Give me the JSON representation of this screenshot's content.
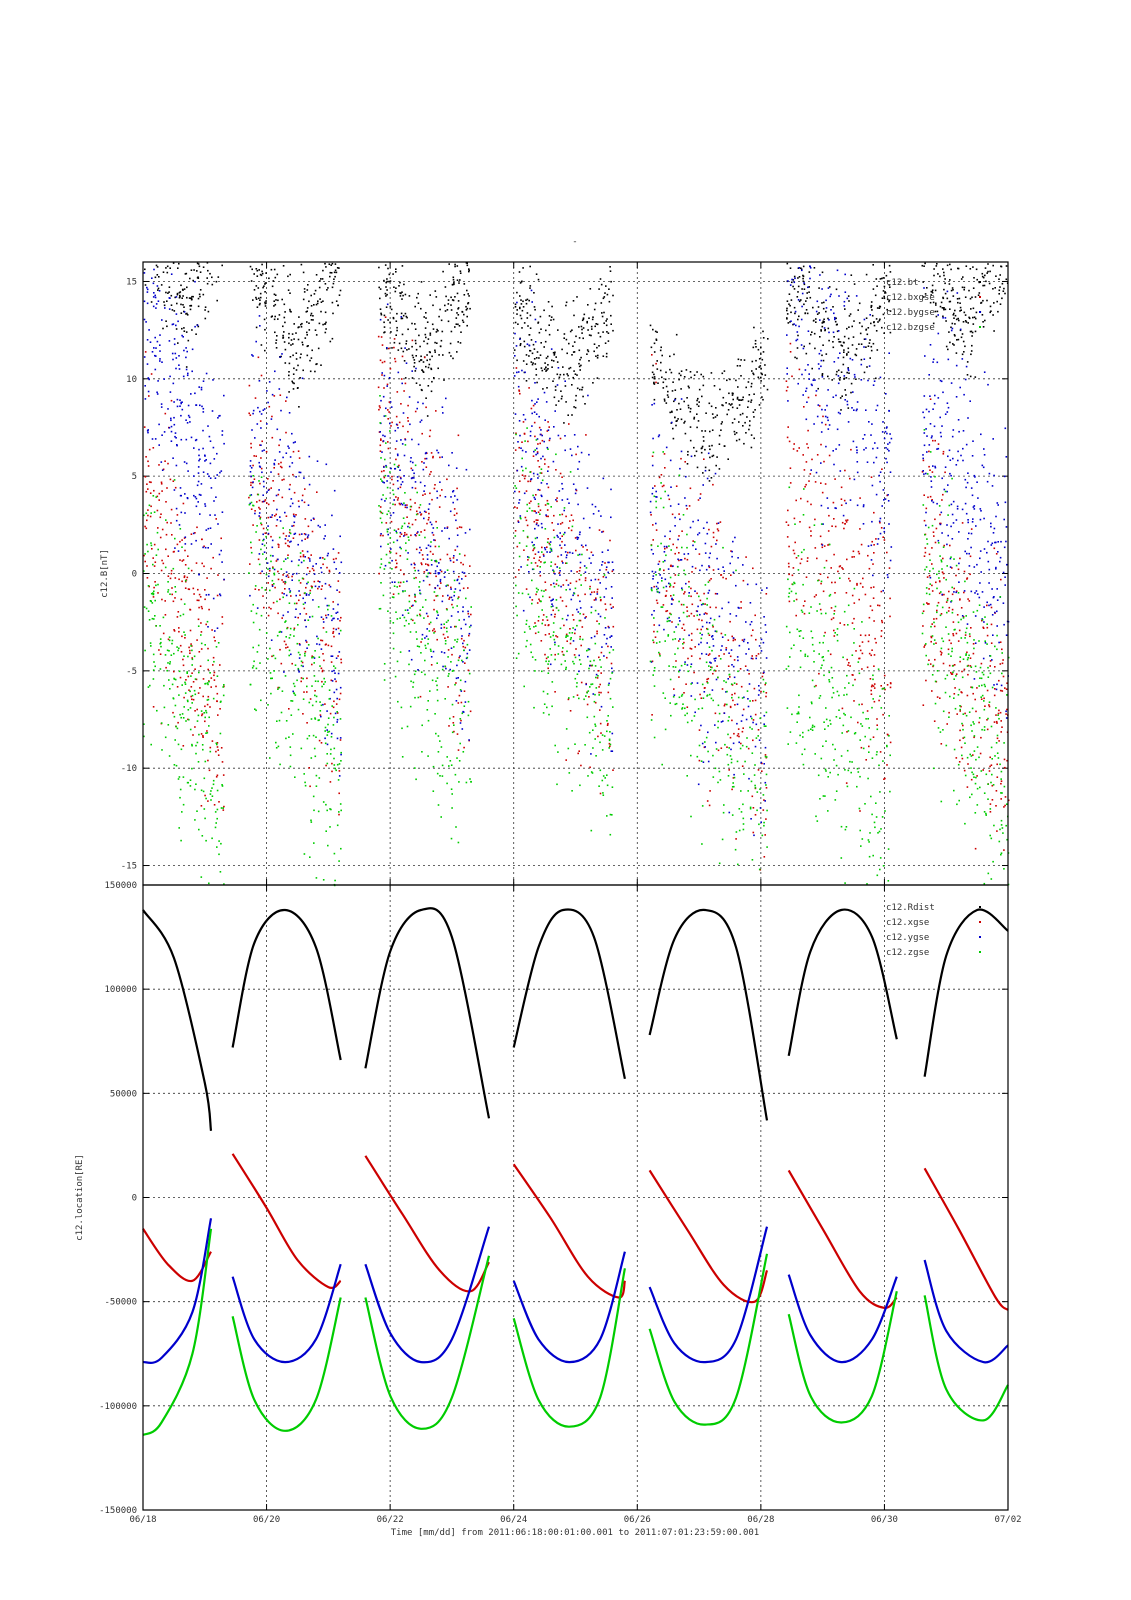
{
  "page_title": "-",
  "xaxis": {
    "label": "Time [mm/dd]  from 2011:06:18:00:01:00.001  to  2011:07:01:23:59:00.001",
    "range_days": [
      0,
      14
    ],
    "ticks": [
      {
        "day": 0,
        "label": "06/18"
      },
      {
        "day": 2,
        "label": "06/20"
      },
      {
        "day": 4,
        "label": "06/22"
      },
      {
        "day": 6,
        "label": "06/24"
      },
      {
        "day": 8,
        "label": "06/26"
      },
      {
        "day": 10,
        "label": "06/28"
      },
      {
        "day": 12,
        "label": "06/30"
      },
      {
        "day": 14,
        "label": "07/02"
      }
    ]
  },
  "chart_data": [
    {
      "type": "scatter",
      "ylabel": "c12.B[nT]",
      "ylim": [
        -16,
        16
      ],
      "yticks": [
        15,
        10,
        5,
        0,
        -5,
        -10,
        -15
      ],
      "grid": true,
      "legend_position": "top-right",
      "series": [
        {
          "name": "c12.bt",
          "color": "#000000"
        },
        {
          "name": "c12.bxgse",
          "color": "#cc0000"
        },
        {
          "name": "c12.bygse",
          "color": "#0000cc"
        },
        {
          "name": "c12.bzgse",
          "color": "#00cc00"
        }
      ],
      "data_intervals_days": [
        [
          0.0,
          1.3
        ],
        [
          1.7,
          3.2
        ],
        [
          3.8,
          5.3
        ],
        [
          6.0,
          7.6
        ],
        [
          8.2,
          10.1
        ],
        [
          10.4,
          12.1
        ],
        [
          12.6,
          14.0
        ]
      ],
      "approx_levels_nT": {
        "c12.bt": [
          14,
          12,
          11,
          10,
          7,
          11,
          13
        ],
        "c12.bxgse": [
          -2,
          0,
          2,
          0,
          -3,
          0,
          -4
        ],
        "c12.bygse": [
          8,
          2,
          3,
          2,
          -2,
          10,
          4
        ],
        "c12.bzgse": [
          -6,
          -5,
          -3,
          -3,
          -6,
          -7,
          -6
        ]
      }
    },
    {
      "type": "line",
      "ylabel": "c12.location[RE]",
      "ylim": [
        -150000,
        150000
      ],
      "yticks": [
        150000,
        100000,
        50000,
        0,
        -50000,
        -100000,
        -150000
      ],
      "grid": true,
      "legend_position": "top-right",
      "series": [
        {
          "name": "c12.Rdist",
          "color": "#000000",
          "segments": [
            {
              "x": [
                0.0,
                0.5,
                1.0,
                1.1
              ],
              "y": [
                138000,
                115000,
                55000,
                32000
              ]
            },
            {
              "x": [
                1.45,
                1.8,
                2.3,
                2.8,
                3.2
              ],
              "y": [
                72000,
                122000,
                138000,
                120000,
                66000
              ]
            },
            {
              "x": [
                3.6,
                4.0,
                4.5,
                5.0,
                5.6
              ],
              "y": [
                62000,
                118000,
                138000,
                125000,
                38000
              ]
            },
            {
              "x": [
                6.0,
                6.4,
                6.8,
                7.3,
                7.8
              ],
              "y": [
                72000,
                120000,
                138000,
                125000,
                57000
              ]
            },
            {
              "x": [
                8.2,
                8.6,
                9.1,
                9.6,
                10.1
              ],
              "y": [
                78000,
                124000,
                138000,
                120000,
                37000
              ]
            },
            {
              "x": [
                10.45,
                10.8,
                11.3,
                11.8,
                12.2
              ],
              "y": [
                68000,
                118000,
                138000,
                125000,
                76000
              ]
            },
            {
              "x": [
                12.65,
                13.0,
                13.5,
                14.0
              ],
              "y": [
                58000,
                116000,
                138000,
                128000
              ]
            }
          ]
        },
        {
          "name": "c12.xgse",
          "color": "#cc0000",
          "segments": [
            {
              "x": [
                0.0,
                0.4,
                0.8,
                1.1
              ],
              "y": [
                -15000,
                -32000,
                -40000,
                -26000
              ]
            },
            {
              "x": [
                1.45,
                2.0,
                2.5,
                3.0,
                3.2
              ],
              "y": [
                21000,
                -5000,
                -30000,
                -43000,
                -40000
              ]
            },
            {
              "x": [
                3.6,
                4.2,
                4.8,
                5.3,
                5.6
              ],
              "y": [
                20000,
                -8000,
                -35000,
                -45000,
                -31000
              ]
            },
            {
              "x": [
                6.0,
                6.6,
                7.2,
                7.7,
                7.8
              ],
              "y": [
                16000,
                -10000,
                -38000,
                -48000,
                -40000
              ]
            },
            {
              "x": [
                8.2,
                8.8,
                9.4,
                9.9,
                10.1
              ],
              "y": [
                13000,
                -15000,
                -42000,
                -50000,
                -35000
              ]
            },
            {
              "x": [
                10.45,
                11.0,
                11.6,
                12.0,
                12.2
              ],
              "y": [
                13000,
                -15000,
                -45000,
                -53000,
                -48000
              ]
            },
            {
              "x": [
                12.65,
                13.2,
                13.8,
                14.0
              ],
              "y": [
                14000,
                -15000,
                -48000,
                -54000
              ]
            }
          ]
        },
        {
          "name": "c12.ygse",
          "color": "#0000cc",
          "segments": [
            {
              "x": [
                0.0,
                0.3,
                0.8,
                1.1
              ],
              "y": [
                -79000,
                -77000,
                -55000,
                -10000
              ]
            },
            {
              "x": [
                1.45,
                1.8,
                2.3,
                2.8,
                3.2
              ],
              "y": [
                -38000,
                -68000,
                -79000,
                -68000,
                -32000
              ]
            },
            {
              "x": [
                3.6,
                4.0,
                4.5,
                5.0,
                5.6
              ],
              "y": [
                -32000,
                -65000,
                -79000,
                -68000,
                -14000
              ]
            },
            {
              "x": [
                6.0,
                6.4,
                6.9,
                7.4,
                7.8
              ],
              "y": [
                -40000,
                -68000,
                -79000,
                -68000,
                -26000
              ]
            },
            {
              "x": [
                8.2,
                8.6,
                9.1,
                9.6,
                10.1
              ],
              "y": [
                -43000,
                -70000,
                -79000,
                -68000,
                -14000
              ]
            },
            {
              "x": [
                10.45,
                10.8,
                11.3,
                11.8,
                12.2
              ],
              "y": [
                -37000,
                -66000,
                -79000,
                -68000,
                -38000
              ]
            },
            {
              "x": [
                12.65,
                13.0,
                13.6,
                14.0
              ],
              "y": [
                -30000,
                -64000,
                -79000,
                -71000
              ]
            }
          ]
        },
        {
          "name": "c12.zgse",
          "color": "#00cc00",
          "segments": [
            {
              "x": [
                0.0,
                0.3,
                0.8,
                1.1
              ],
              "y": [
                -114000,
                -108000,
                -75000,
                -15000
              ]
            },
            {
              "x": [
                1.45,
                1.8,
                2.3,
                2.8,
                3.2
              ],
              "y": [
                -57000,
                -97000,
                -112000,
                -97000,
                -48000
              ]
            },
            {
              "x": [
                3.6,
                4.0,
                4.5,
                5.0,
                5.6
              ],
              "y": [
                -48000,
                -95000,
                -111000,
                -96000,
                -28000
              ]
            },
            {
              "x": [
                6.0,
                6.4,
                6.9,
                7.4,
                7.8
              ],
              "y": [
                -58000,
                -97000,
                -110000,
                -96000,
                -34000
              ]
            },
            {
              "x": [
                8.2,
                8.6,
                9.1,
                9.6,
                10.1
              ],
              "y": [
                -63000,
                -98000,
                -109000,
                -96000,
                -27000
              ]
            },
            {
              "x": [
                10.45,
                10.8,
                11.3,
                11.8,
                12.2
              ],
              "y": [
                -56000,
                -95000,
                -108000,
                -95000,
                -45000
              ]
            },
            {
              "x": [
                12.65,
                13.0,
                13.6,
                14.0
              ],
              "y": [
                -47000,
                -92000,
                -107000,
                -90000
              ]
            }
          ]
        }
      ]
    }
  ]
}
